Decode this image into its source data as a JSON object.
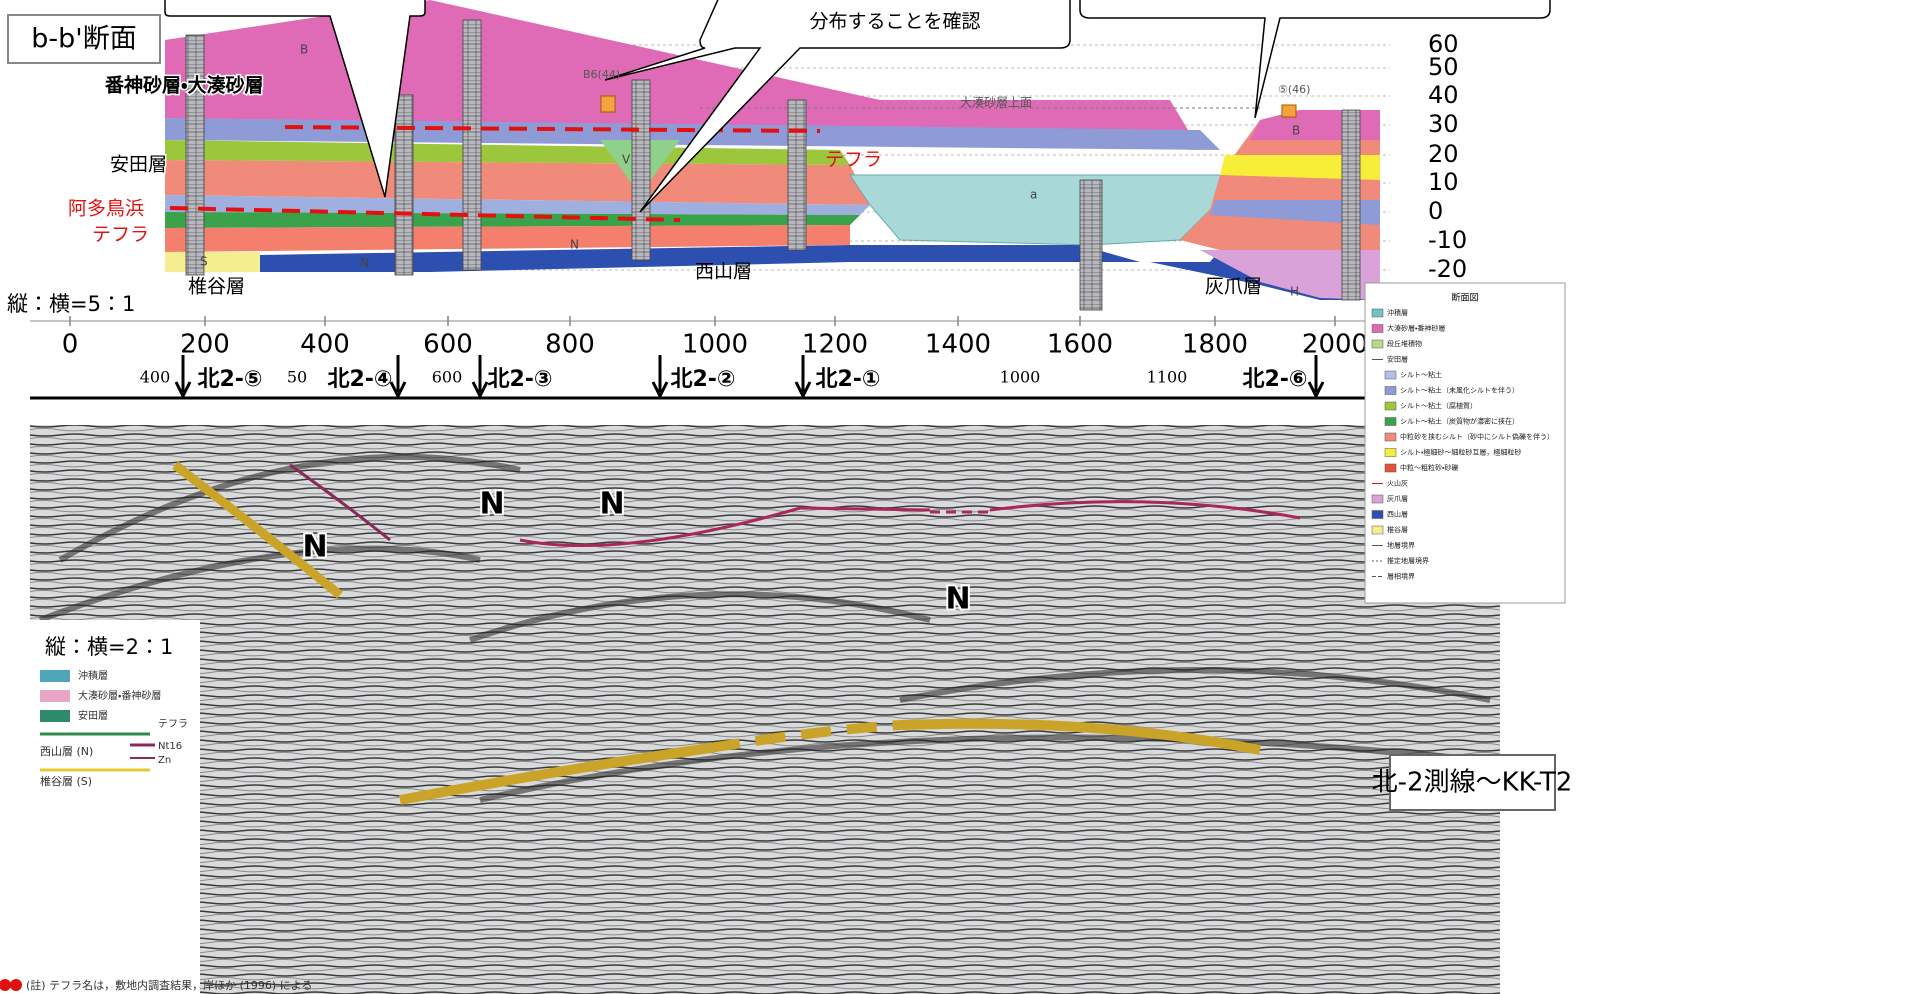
{
  "section_top": {
    "title": "b-b'断面",
    "callout": "分布することを確認",
    "labels": {
      "bansin": "番神砂層・大湊砂層",
      "yasuda": "安田層",
      "ata": [
        "阿多鳥浜",
        "テフラ"
      ],
      "tephra": "テフラ",
      "shiiya": "椎谷層",
      "nishiyama": "西山層",
      "haizume": "灰爪層",
      "ratio": "縦：横=5：1",
      "b6": "B6(44)",
      "ominato_top": "大湊砂層上面",
      "b5": "⑤(46)",
      "unit_letters": [
        "B",
        "V",
        "N",
        "a",
        "S",
        "N",
        "H",
        "B"
      ]
    },
    "elevation_ticks": [
      60,
      50,
      40,
      30,
      20,
      10,
      0,
      -10,
      -20
    ],
    "distance_ticks": [
      0,
      200,
      400,
      600,
      800,
      1000,
      1200,
      1400,
      1600,
      1800,
      2000
    ]
  },
  "markers": {
    "labels": [
      "北2-⑤",
      "北2-④",
      "北2-③",
      "北2-②",
      "北2-①",
      "北2-⑥"
    ],
    "scale": [
      400,
      50,
      600,
      1000,
      1100
    ]
  },
  "seismic": {
    "n_labels": [
      "N",
      "N",
      "N",
      "N"
    ],
    "ratio": "縦：横=2：1",
    "legend": [
      "沖積層",
      "大湊砂層・番神砂層",
      "安田層",
      "テフラ",
      "西山層 (N)",
      "Nt16",
      "Zn",
      "椎谷層 (S)"
    ],
    "note": "(註) テフラ名は，敷地内調査結果，岸ほか (1996) による",
    "line_name": "北-2測線～KK-T2"
  },
  "legend": {
    "title": "断面図",
    "items": [
      "沖積層",
      "大湊砂層・番神砂層",
      "段丘堆積物",
      "安田層",
      "シルト～粘土",
      "シルト～粘土（未風化シルトを伴う）",
      "シルト～粘土（腐植質）",
      "シルト～粘土（炭質物が濃密に挟在）",
      "中粒砂を挟むシルト（砂中にシルト偽礫を伴う）",
      "シルト・極細砂～細粒砂互層，極細粒砂",
      "中粒～粗粒砂・砂礫",
      "火山灰",
      "灰爪層",
      "西山層",
      "椎谷層",
      "地層境界",
      "推定地層境界",
      "層相境界"
    ]
  }
}
